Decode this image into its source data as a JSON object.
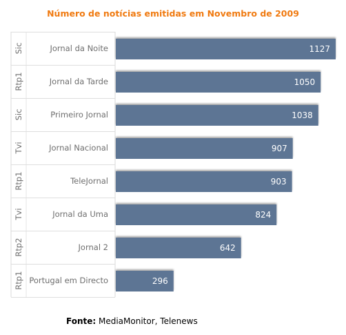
{
  "chart_data": {
    "type": "bar",
    "orientation": "horizontal",
    "title": "Número de notícias emitidas em Novembro de 2009",
    "categories": [
      "Jornal da Noite",
      "Jornal da Tarde",
      "Primeiro Jornal",
      "Jornal Nacional",
      "TeleJornal",
      "Jornal da Uma",
      "Jornal 2",
      "Portugal em Directo"
    ],
    "groups": [
      "Sic",
      "Rtp1",
      "Sic",
      "Tvi",
      "Rtp1",
      "Tvi",
      "Rtp2",
      "Rtp1"
    ],
    "values": [
      1127,
      1050,
      1038,
      907,
      903,
      824,
      642,
      296
    ],
    "xlim": [
      0,
      1127
    ],
    "grid": false,
    "bar_color": "#5d7594"
  },
  "source": {
    "label": "Fonte:",
    "text": " MediaMonitor, Telenews"
  }
}
